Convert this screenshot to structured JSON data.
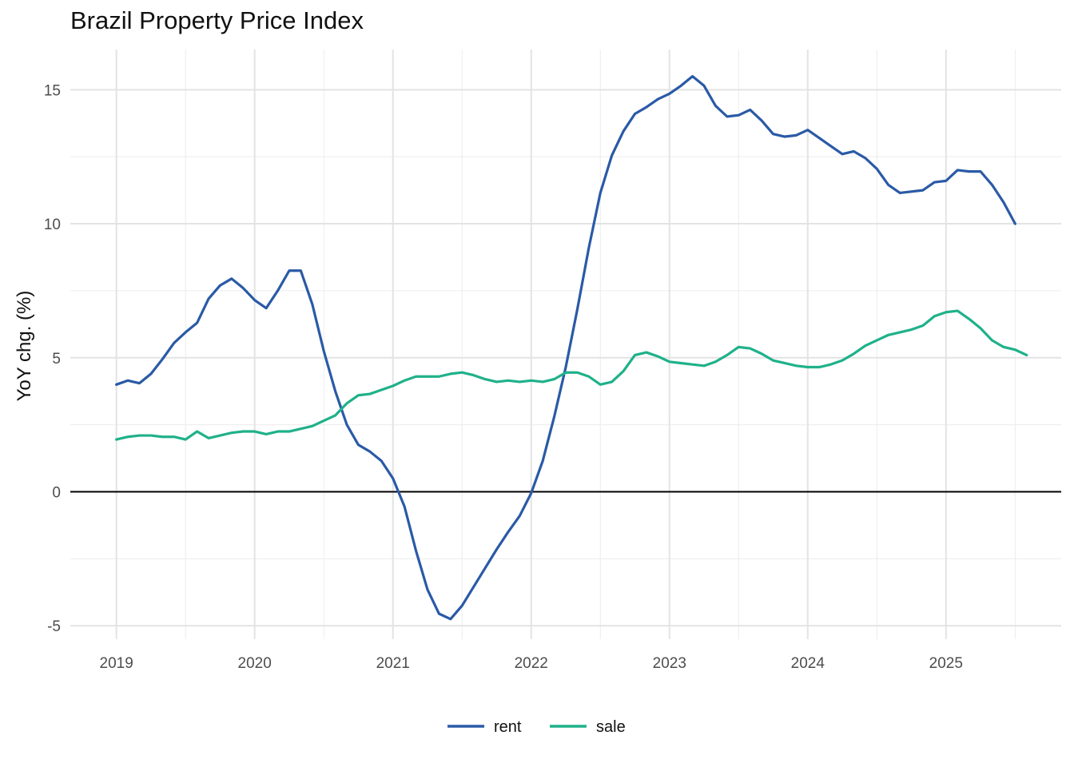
{
  "chart_data": {
    "type": "line",
    "title": "Brazil Property Price Index",
    "xlabel": "",
    "ylabel": "YoY chg. (%)",
    "x_ticks": [
      "2019",
      "2020",
      "2021",
      "2022",
      "2023",
      "2024",
      "2025"
    ],
    "y_ticks": [
      -5,
      0,
      5,
      10,
      15
    ],
    "xlim": [
      "2018-09",
      "2025-11"
    ],
    "ylim": [
      -5.5,
      16.5
    ],
    "grid": true,
    "reference_line_y": 0,
    "legend_position": "bottom",
    "series": [
      {
        "name": "rent",
        "color": "#2a5aa6",
        "start": "2019-01",
        "values": [
          4.0,
          4.15,
          4.05,
          4.4,
          4.95,
          5.55,
          5.95,
          6.3,
          7.2,
          7.7,
          7.95,
          7.6,
          7.15,
          6.85,
          7.5,
          8.25,
          8.25,
          7.0,
          5.25,
          3.75,
          2.5,
          1.75,
          1.5,
          1.15,
          0.5,
          -0.55,
          -2.2,
          -3.65,
          -4.55,
          -4.75,
          -4.25,
          -3.55,
          -2.85,
          -2.15,
          -1.5,
          -0.9,
          -0.05,
          1.15,
          2.8,
          4.65,
          6.8,
          9.1,
          11.15,
          12.55,
          13.45,
          14.1,
          14.35,
          14.65,
          14.85,
          15.15,
          15.5,
          15.15,
          14.4,
          14.0,
          14.05,
          14.25,
          13.85,
          13.35,
          13.25,
          13.3,
          13.5,
          13.2,
          12.9,
          12.6,
          12.7,
          12.45,
          12.05,
          11.45,
          11.15,
          11.2,
          11.25,
          11.55,
          11.6,
          12.0,
          11.95,
          11.95,
          11.45,
          10.8,
          10.0
        ]
      },
      {
        "name": "sale",
        "color": "#1fb18a",
        "start": "2019-01",
        "values": [
          1.95,
          2.05,
          2.1,
          2.1,
          2.05,
          2.05,
          1.95,
          2.25,
          2.0,
          2.1,
          2.2,
          2.25,
          2.25,
          2.15,
          2.25,
          2.25,
          2.35,
          2.45,
          2.65,
          2.85,
          3.3,
          3.6,
          3.65,
          3.8,
          3.95,
          4.15,
          4.3,
          4.3,
          4.3,
          4.4,
          4.45,
          4.35,
          4.2,
          4.1,
          4.15,
          4.1,
          4.15,
          4.1,
          4.2,
          4.45,
          4.45,
          4.3,
          4.0,
          4.1,
          4.5,
          5.1,
          5.2,
          5.05,
          4.85,
          4.8,
          4.75,
          4.7,
          4.85,
          5.1,
          5.4,
          5.35,
          5.15,
          4.9,
          4.8,
          4.7,
          4.65,
          4.65,
          4.75,
          4.9,
          5.15,
          5.45,
          5.65,
          5.85,
          5.95,
          6.05,
          6.2,
          6.55,
          6.7,
          6.75,
          6.45,
          6.1,
          5.65,
          5.4,
          5.3,
          5.1
        ]
      }
    ]
  }
}
